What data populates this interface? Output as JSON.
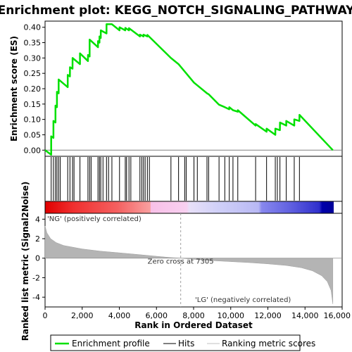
{
  "chart_data": {
    "type": "line",
    "title": "Enrichment plot: KEGG_NOTCH_SIGNALING_PATHWAY",
    "xlabel": "Rank in Ordered Dataset",
    "ylabel_top": "Enrichment score (ES)",
    "ylabel_bottom": "Ranked list metric (Signal2Noise)",
    "xlim": [
      0,
      16000
    ],
    "x_ticks": [
      0,
      2000,
      4000,
      6000,
      8000,
      10000,
      12000,
      14000,
      16000
    ],
    "x_tick_labels": [
      "0",
      "2,000",
      "4,000",
      "6,000",
      "8,000",
      "10,000",
      "12,000",
      "14,000",
      "16,000"
    ],
    "es_ylim": [
      -0.02,
      0.42
    ],
    "es_ticks": [
      0.0,
      0.05,
      0.1,
      0.15,
      0.2,
      0.25,
      0.3,
      0.35,
      0.4
    ],
    "es_tick_labels": [
      "0.00",
      "0.05",
      "0.10",
      "0.15",
      "0.20",
      "0.25",
      "0.30",
      "0.35",
      "0.40"
    ],
    "metric_ylim": [
      -5,
      4.6
    ],
    "metric_ticks": [
      4,
      2,
      0,
      -2,
      -4
    ],
    "metric_tick_labels": [
      "4",
      "2",
      "0",
      "-2",
      "-4"
    ],
    "n_genes": 15500,
    "zero_cross": 7305,
    "zero_cross_label": "Zero cross at 7305",
    "pos_label": "'NG' (positively correlated)",
    "neg_label": "'LG' (negatively correlated)",
    "hits": [
      330,
      450,
      560,
      640,
      730,
      820,
      1220,
      1340,
      1480,
      1560,
      1880,
      2310,
      2400,
      2480,
      2850,
      2930,
      3000,
      3120,
      3310,
      3420,
      3600,
      4010,
      4320,
      4390,
      4520,
      4620,
      5110,
      5210,
      5300,
      5390,
      5510,
      5620,
      6780,
      7190,
      7520,
      7600,
      8020,
      8200,
      8720,
      8810,
      9370,
      9680,
      9920,
      10120,
      10380,
      11340,
      11930,
      12400,
      12510,
      12650,
      12990,
      13420,
      13700
    ],
    "es_curve": [
      [
        0,
        0.0
      ],
      [
        330,
        -0.015
      ],
      [
        331,
        0.045
      ],
      [
        450,
        0.04
      ],
      [
        451,
        0.095
      ],
      [
        560,
        0.09
      ],
      [
        561,
        0.145
      ],
      [
        640,
        0.14
      ],
      [
        641,
        0.19
      ],
      [
        730,
        0.185
      ],
      [
        731,
        0.23
      ],
      [
        1220,
        0.205
      ],
      [
        1221,
        0.245
      ],
      [
        1340,
        0.24
      ],
      [
        1341,
        0.27
      ],
      [
        1480,
        0.265
      ],
      [
        1481,
        0.3
      ],
      [
        1880,
        0.28
      ],
      [
        1881,
        0.315
      ],
      [
        2310,
        0.29
      ],
      [
        2311,
        0.31
      ],
      [
        2400,
        0.305
      ],
      [
        2401,
        0.36
      ],
      [
        2850,
        0.335
      ],
      [
        2851,
        0.355
      ],
      [
        2930,
        0.35
      ],
      [
        2931,
        0.37
      ],
      [
        3000,
        0.365
      ],
      [
        3001,
        0.39
      ],
      [
        3310,
        0.38
      ],
      [
        3311,
        0.41
      ],
      [
        3600,
        0.41
      ],
      [
        4010,
        0.39
      ],
      [
        4011,
        0.4
      ],
      [
        4320,
        0.39
      ],
      [
        4321,
        0.398
      ],
      [
        4520,
        0.39
      ],
      [
        4521,
        0.397
      ],
      [
        5110,
        0.37
      ],
      [
        5111,
        0.376
      ],
      [
        5300,
        0.37
      ],
      [
        5301,
        0.376
      ],
      [
        5510,
        0.37
      ],
      [
        5511,
        0.375
      ],
      [
        6780,
        0.3
      ],
      [
        7190,
        0.28
      ],
      [
        8020,
        0.22
      ],
      [
        8720,
        0.185
      ],
      [
        8810,
        0.182
      ],
      [
        9370,
        0.148
      ],
      [
        9680,
        0.14
      ],
      [
        9920,
        0.133
      ],
      [
        9921,
        0.14
      ],
      [
        10120,
        0.13
      ],
      [
        10380,
        0.125
      ],
      [
        10381,
        0.13
      ],
      [
        11340,
        0.08
      ],
      [
        11341,
        0.085
      ],
      [
        11930,
        0.06
      ],
      [
        11931,
        0.07
      ],
      [
        12400,
        0.05
      ],
      [
        12401,
        0.07
      ],
      [
        12650,
        0.065
      ],
      [
        12651,
        0.09
      ],
      [
        12990,
        0.08
      ],
      [
        12991,
        0.095
      ],
      [
        13420,
        0.08
      ],
      [
        13421,
        0.1
      ],
      [
        13700,
        0.095
      ],
      [
        13701,
        0.115
      ],
      [
        15500,
        0.0
      ]
    ],
    "metric_curve": [
      [
        0,
        3.3
      ],
      [
        100,
        2.6
      ],
      [
        300,
        2.0
      ],
      [
        600,
        1.6
      ],
      [
        1000,
        1.3
      ],
      [
        2000,
        0.95
      ],
      [
        3000,
        0.72
      ],
      [
        4000,
        0.55
      ],
      [
        5000,
        0.38
      ],
      [
        6000,
        0.2
      ],
      [
        6800,
        0.06
      ],
      [
        7305,
        0.0
      ],
      [
        8000,
        -0.12
      ],
      [
        9000,
        -0.25
      ],
      [
        10000,
        -0.35
      ],
      [
        11000,
        -0.45
      ],
      [
        12000,
        -0.58
      ],
      [
        13000,
        -0.75
      ],
      [
        13800,
        -0.98
      ],
      [
        14400,
        -1.3
      ],
      [
        14900,
        -1.8
      ],
      [
        15200,
        -2.4
      ],
      [
        15400,
        -3.3
      ],
      [
        15500,
        -4.7
      ]
    ],
    "legend": {
      "enrichment": "Enrichment profile",
      "hits": "Hits",
      "ranking": "Ranking metric scores"
    },
    "colors": {
      "es_line": "#00e000",
      "zero_line": "#808080",
      "metric_fill": "#b4b4b4",
      "pos_text": "#cc0000",
      "neg_text": "#0000cc",
      "hit_line": "#000000"
    }
  }
}
